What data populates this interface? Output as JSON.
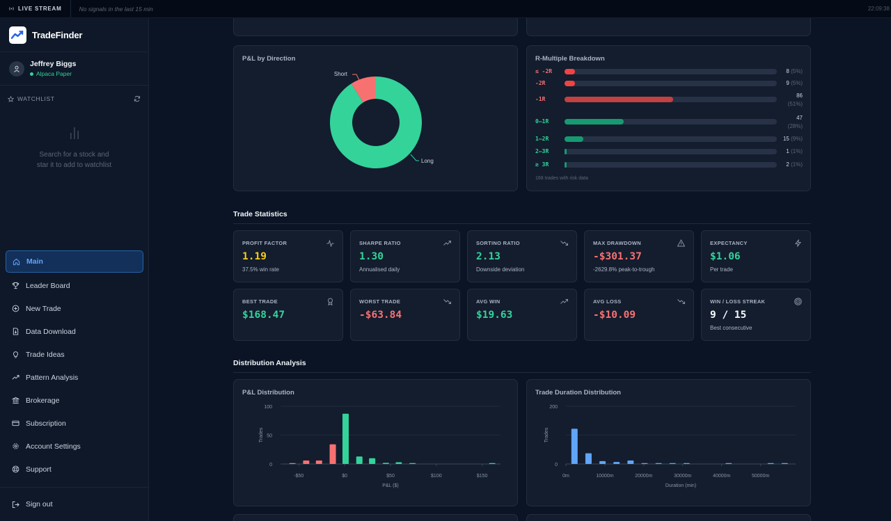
{
  "topbar": {
    "live_label": "LIVE STREAM",
    "status": "No signals in the last 15 min",
    "clock": "22:09:38"
  },
  "brand": {
    "name": "TradeFinder"
  },
  "user": {
    "name": "Jeffrey Biggs",
    "account": "Alpaca Paper"
  },
  "watchlist": {
    "title": "WATCHLIST",
    "empty_line1": "Search for a stock and",
    "empty_line2": "star it to add to watchlist"
  },
  "nav": [
    {
      "label": "Main",
      "icon": "home-icon",
      "active": true
    },
    {
      "label": "Leader Board",
      "icon": "trophy-icon"
    },
    {
      "label": "New Trade",
      "icon": "plus-circle-icon"
    },
    {
      "label": "Data Download",
      "icon": "file-download-icon"
    },
    {
      "label": "Trade Ideas",
      "icon": "lightbulb-icon"
    },
    {
      "label": "Pattern Analysis",
      "icon": "trend-icon"
    },
    {
      "label": "Brokerage",
      "icon": "bank-icon"
    },
    {
      "label": "Subscription",
      "icon": "credit-card-icon"
    },
    {
      "label": "Account Settings",
      "icon": "gear-icon"
    },
    {
      "label": "Support",
      "icon": "lifebuoy-icon"
    }
  ],
  "signout": {
    "label": "Sign out"
  },
  "pnl_direction": {
    "title": "P&L by Direction",
    "chart_data": {
      "type": "pie",
      "labels": [
        "Long",
        "Short"
      ],
      "values": [
        91,
        9
      ],
      "colors": [
        "#34d399",
        "#f87171"
      ]
    }
  },
  "r_multiple": {
    "title": "R-Multiple Breakdown",
    "rows": [
      {
        "label": "≤ -2R",
        "count": "8",
        "pct": "(5%)",
        "value": 0.05,
        "color": "#ef4444",
        "lcolor": "#f87171"
      },
      {
        "label": "-2R",
        "count": "9",
        "pct": "(5%)",
        "value": 0.05,
        "color": "#ef4444",
        "lcolor": "#f87171"
      },
      {
        "label": "-1R",
        "count": "86",
        "pct": "(51%)",
        "value": 0.51,
        "color": "#c24141",
        "lcolor": "#f87171",
        "two": true
      },
      {
        "label": "0–1R",
        "count": "47",
        "pct": "(28%)",
        "value": 0.28,
        "color": "#179a70",
        "lcolor": "#34d399",
        "two": true
      },
      {
        "label": "1–2R",
        "count": "15",
        "pct": "(9%)",
        "value": 0.09,
        "color": "#179a70",
        "lcolor": "#34d399"
      },
      {
        "label": "2–3R",
        "count": "1",
        "pct": "(1%)",
        "value": 0.01,
        "color": "#179a70",
        "lcolor": "#34d399"
      },
      {
        "label": "≥ 3R",
        "count": "2",
        "pct": "(1%)",
        "value": 0.01,
        "color": "#179a70",
        "lcolor": "#34d399"
      }
    ],
    "footer": "168 trades with risk data"
  },
  "trade_stats": {
    "title": "Trade Statistics",
    "cards": [
      {
        "label": "PROFIT FACTOR",
        "value": "1.19",
        "sub": "37.5% win rate",
        "tone": "yel",
        "icon": "activity-icon"
      },
      {
        "label": "SHARPE RATIO",
        "value": "1.30",
        "sub": "Annualised daily",
        "tone": "pos",
        "icon": "trend-up-icon"
      },
      {
        "label": "SORTINO RATIO",
        "value": "2.13",
        "sub": "Downside deviation",
        "tone": "pos",
        "icon": "trend-down-icon"
      },
      {
        "label": "MAX DRAWDOWN",
        "value": "-$301.37",
        "sub": "-2629.8% peak-to-trough",
        "tone": "neg",
        "icon": "warning-icon"
      },
      {
        "label": "EXPECTANCY",
        "value": "$1.06",
        "sub": "Per trade",
        "tone": "pos",
        "icon": "bolt-icon"
      },
      {
        "label": "BEST TRADE",
        "value": "$168.47",
        "sub": "",
        "tone": "pos",
        "icon": "award-icon"
      },
      {
        "label": "WORST TRADE",
        "value": "-$63.84",
        "sub": "",
        "tone": "neg",
        "icon": "trend-down-icon"
      },
      {
        "label": "AVG WIN",
        "value": "$19.63",
        "sub": "",
        "tone": "pos",
        "icon": "trend-up-icon"
      },
      {
        "label": "AVG LOSS",
        "value": "-$10.09",
        "sub": "",
        "tone": "neg",
        "icon": "trend-down-icon"
      },
      {
        "label": "WIN / LOSS STREAK",
        "value": "9 / 15",
        "sub": "Best consecutive",
        "tone": "wht",
        "icon": "target-icon"
      }
    ]
  },
  "distribution": {
    "title": "Distribution Analysis",
    "pnl": {
      "title": "P&L Distribution",
      "chart_data": {
        "type": "bar",
        "xlabel": "P&L ($)",
        "ylabel": "Trades",
        "ylim": [
          0,
          100
        ],
        "yticks": [
          "0",
          "50",
          "100"
        ],
        "xlim": [
          -70,
          170
        ],
        "xticks": [
          {
            "v": -50,
            "t": "-$50"
          },
          {
            "v": 0,
            "t": "$0"
          },
          {
            "v": 50,
            "t": "$50"
          },
          {
            "v": 100,
            "t": "$100"
          },
          {
            "v": 150,
            "t": "$150"
          }
        ],
        "bars": [
          {
            "x": -57,
            "y": 1
          },
          {
            "x": -42,
            "y": 6
          },
          {
            "x": -28,
            "y": 6
          },
          {
            "x": -13,
            "y": 34
          },
          {
            "x": 1,
            "y": 87
          },
          {
            "x": 16,
            "y": 13
          },
          {
            "x": 30,
            "y": 10
          },
          {
            "x": 45,
            "y": 2
          },
          {
            "x": 59,
            "y": 3
          },
          {
            "x": 74,
            "y": 1
          },
          {
            "x": 161,
            "y": 1
          }
        ]
      }
    },
    "duration": {
      "title": "Trade Duration Distribution",
      "chart_data": {
        "type": "bar",
        "xlabel": "Duration (min)",
        "ylabel": "Trades",
        "ylim": [
          0,
          200
        ],
        "yticks": [
          "0",
          "200"
        ],
        "xlim": [
          0,
          59000
        ],
        "xticks": [
          {
            "v": 0,
            "t": "0m"
          },
          {
            "v": 10000,
            "t": "10000m"
          },
          {
            "v": 20000,
            "t": "20000m"
          },
          {
            "v": 30000,
            "t": "30000m"
          },
          {
            "v": 40000,
            "t": "40000m"
          },
          {
            "v": 50000,
            "t": "50000m"
          }
        ],
        "bars": [
          {
            "x": 2200,
            "y": 122
          },
          {
            "x": 5800,
            "y": 37
          },
          {
            "x": 9400,
            "y": 10
          },
          {
            "x": 13000,
            "y": 7
          },
          {
            "x": 16600,
            "y": 12
          },
          {
            "x": 20200,
            "y": 2
          },
          {
            "x": 23800,
            "y": 2
          },
          {
            "x": 27400,
            "y": 2
          },
          {
            "x": 31000,
            "y": 1
          },
          {
            "x": 41800,
            "y": 1
          },
          {
            "x": 52600,
            "y": 1
          },
          {
            "x": 56200,
            "y": 1
          }
        ]
      }
    }
  }
}
